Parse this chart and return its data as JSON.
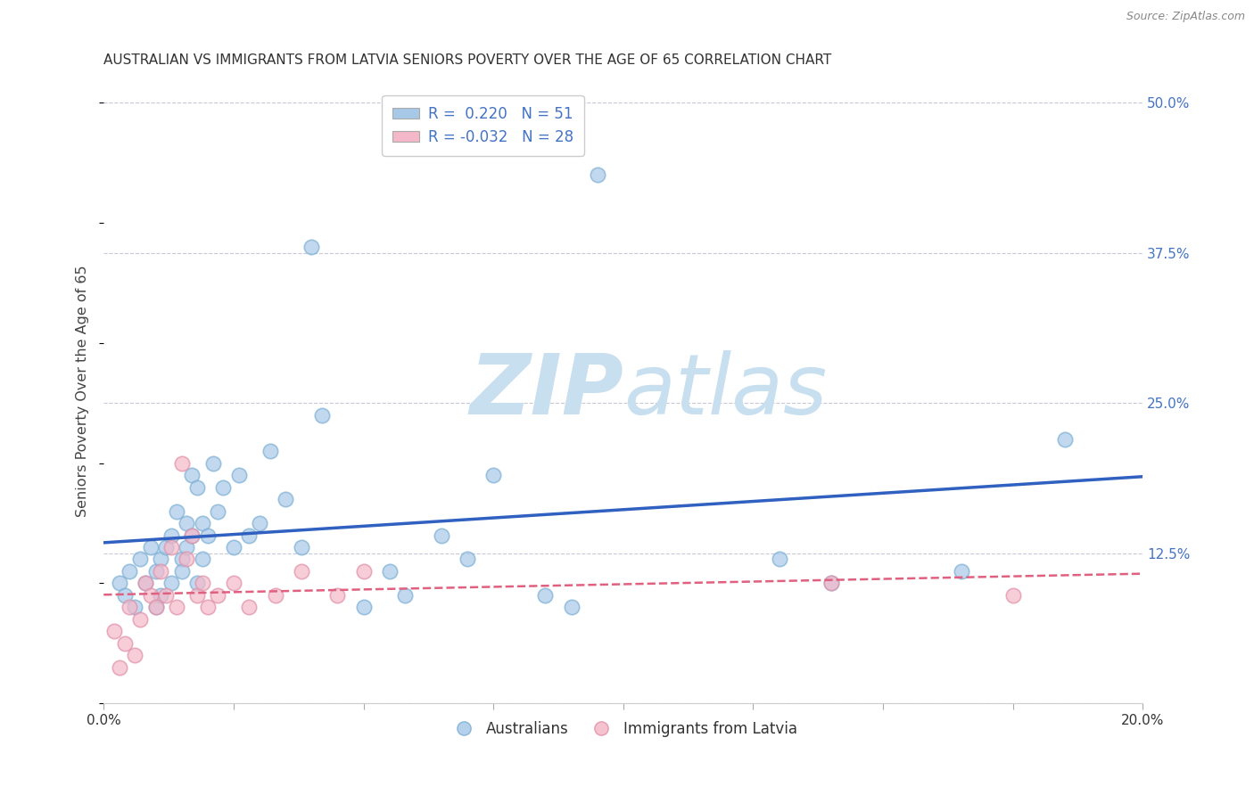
{
  "title": "AUSTRALIAN VS IMMIGRANTS FROM LATVIA SENIORS POVERTY OVER THE AGE OF 65 CORRELATION CHART",
  "source": "Source: ZipAtlas.com",
  "ylabel": "Seniors Poverty Over the Age of 65",
  "xlim": [
    0.0,
    0.2
  ],
  "ylim": [
    0.0,
    0.52
  ],
  "xticks": [
    0.0,
    0.025,
    0.05,
    0.075,
    0.1,
    0.125,
    0.15,
    0.175,
    0.2
  ],
  "yticks_right": [
    0.0,
    0.125,
    0.25,
    0.375,
    0.5
  ],
  "ytick_labels_right": [
    "",
    "12.5%",
    "25.0%",
    "37.5%",
    "50.0%"
  ],
  "blue_color": "#a8c8e8",
  "blue_edge_color": "#7bafd4",
  "blue_line_color": "#3060c0",
  "pink_color": "#f4b8c8",
  "pink_edge_color": "#e090a8",
  "pink_line_color": "#e06080",
  "legend_blue_label": "R =  0.220   N = 51",
  "legend_pink_label": "R = -0.032   N = 28",
  "legend_australians": "Australians",
  "legend_immigrants": "Immigrants from Latvia",
  "blue_scatter_x": [
    0.003,
    0.004,
    0.005,
    0.006,
    0.007,
    0.008,
    0.009,
    0.01,
    0.01,
    0.011,
    0.011,
    0.012,
    0.013,
    0.013,
    0.014,
    0.015,
    0.015,
    0.016,
    0.016,
    0.017,
    0.017,
    0.018,
    0.018,
    0.019,
    0.019,
    0.02,
    0.021,
    0.022,
    0.023,
    0.025,
    0.026,
    0.028,
    0.03,
    0.032,
    0.035,
    0.038,
    0.04,
    0.042,
    0.05,
    0.055,
    0.058,
    0.065,
    0.07,
    0.075,
    0.085,
    0.09,
    0.095,
    0.13,
    0.14,
    0.165,
    0.185
  ],
  "blue_scatter_y": [
    0.1,
    0.09,
    0.11,
    0.08,
    0.12,
    0.1,
    0.13,
    0.11,
    0.08,
    0.12,
    0.09,
    0.13,
    0.1,
    0.14,
    0.16,
    0.12,
    0.11,
    0.15,
    0.13,
    0.19,
    0.14,
    0.18,
    0.1,
    0.15,
    0.12,
    0.14,
    0.2,
    0.16,
    0.18,
    0.13,
    0.19,
    0.14,
    0.15,
    0.21,
    0.17,
    0.13,
    0.38,
    0.24,
    0.08,
    0.11,
    0.09,
    0.14,
    0.12,
    0.19,
    0.09,
    0.08,
    0.44,
    0.12,
    0.1,
    0.11,
    0.22
  ],
  "pink_scatter_x": [
    0.002,
    0.003,
    0.004,
    0.005,
    0.006,
    0.007,
    0.008,
    0.009,
    0.01,
    0.011,
    0.012,
    0.013,
    0.014,
    0.015,
    0.016,
    0.017,
    0.018,
    0.019,
    0.02,
    0.022,
    0.025,
    0.028,
    0.033,
    0.038,
    0.045,
    0.05,
    0.14,
    0.175
  ],
  "pink_scatter_y": [
    0.06,
    0.03,
    0.05,
    0.08,
    0.04,
    0.07,
    0.1,
    0.09,
    0.08,
    0.11,
    0.09,
    0.13,
    0.08,
    0.2,
    0.12,
    0.14,
    0.09,
    0.1,
    0.08,
    0.09,
    0.1,
    0.08,
    0.09,
    0.11,
    0.09,
    0.11,
    0.1,
    0.09
  ],
  "grid_color": "#c8c8d8",
  "bg_color": "#ffffff",
  "watermark_zip": "ZIP",
  "watermark_atlas": "atlas",
  "watermark_color_zip": "#c8dff0",
  "watermark_color_atlas": "#c8dff0"
}
